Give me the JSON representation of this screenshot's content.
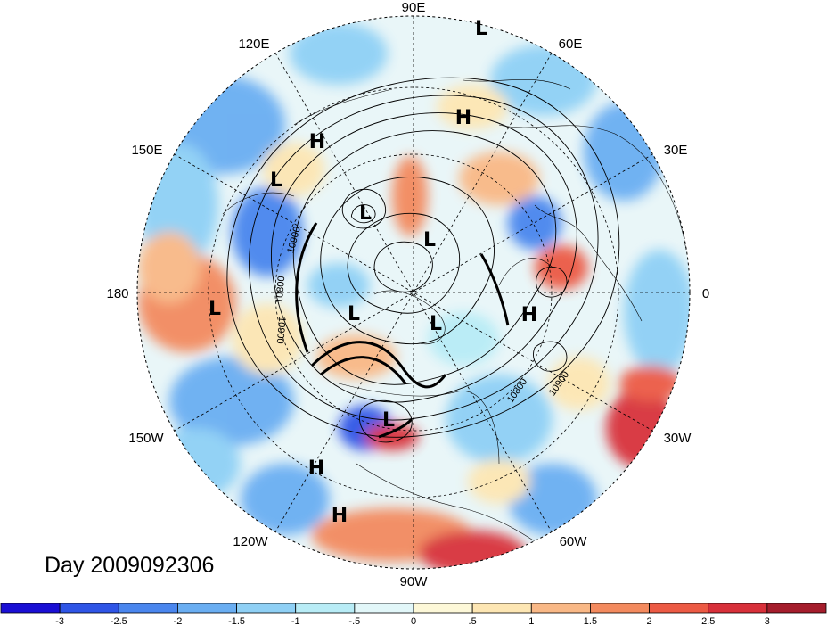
{
  "map": {
    "projection": "north-polar-stereographic",
    "longitude_labels": {
      "top": "90E",
      "top_left": "120E",
      "top_right": "60E",
      "upper_left": "150E",
      "upper_right": "30E",
      "left": "180",
      "right": "0",
      "lower_left": "150W",
      "lower_right": "30W",
      "bottom_left": "120W",
      "bottom_right": "60W",
      "bottom": "90W"
    },
    "pressure_centers": [
      {
        "type": "L",
        "where": "top"
      },
      {
        "type": "H",
        "where": "upper-center"
      },
      {
        "type": "H",
        "where": "upper-left"
      },
      {
        "type": "L",
        "where": "left-upper"
      },
      {
        "type": "L",
        "where": "center-upper-left"
      },
      {
        "type": "L",
        "where": "center"
      },
      {
        "type": "L",
        "where": "left"
      },
      {
        "type": "L",
        "where": "center-left"
      },
      {
        "type": "L",
        "where": "center-right"
      },
      {
        "type": "H",
        "where": "right"
      },
      {
        "type": "L",
        "where": "lower-center"
      },
      {
        "type": "H",
        "where": "lower-left"
      },
      {
        "type": "H",
        "where": "bottom-left"
      }
    ],
    "contour_labels": [
      "10900",
      "10800",
      "10900",
      "10800",
      "10900"
    ]
  },
  "day_label": "Day 2009092306",
  "colorbar": {
    "colors": [
      "#1a0fd4",
      "#2f55e6",
      "#4a86ee",
      "#6aaef2",
      "#8fd0f5",
      "#b8ecf6",
      "#e2f7f9",
      "#fdf8d8",
      "#fde6b3",
      "#f9b886",
      "#f38a5e",
      "#ec5a44",
      "#d8303a",
      "#a51d2c"
    ],
    "tick_labels": [
      "-3",
      "-2.5",
      "-2",
      "-1.5",
      "-1",
      "-.5",
      "0",
      ".5",
      "1",
      "1.5",
      "2",
      "2.5",
      "3"
    ]
  }
}
